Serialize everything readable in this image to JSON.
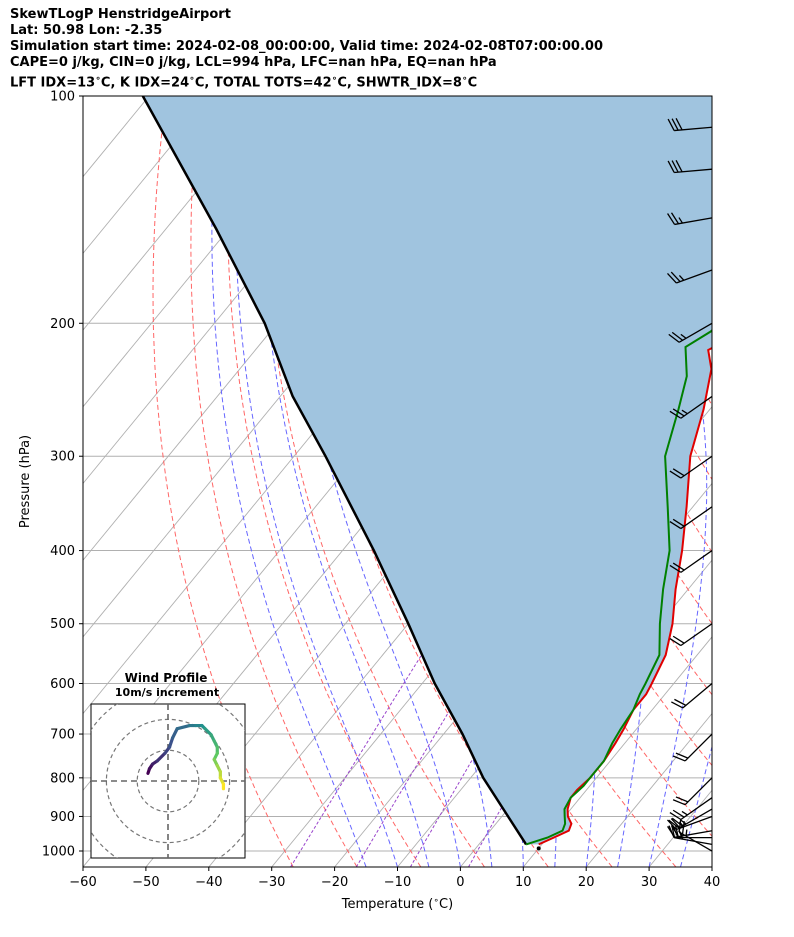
{
  "header": {
    "lines": [
      "SkewTLogP HenstridgeAirport",
      "Lat: 50.98   Lon: -2.35",
      "Simulation start time: 2024-02-08_00:00:00, Valid time: 2024-02-08T07:00:00.00",
      "CAPE=0 j/kg, CIN=0 j/kg, LCL=994 hPa, LFC=nan hPa, EQ=nan hPa",
      "LFT IDX=13$^\\circ$C, K IDX=24$^\\circ$C, TOTAL TOTS=42$^\\circ$C, SHWTR_IDX=8$^\\circ$C"
    ]
  },
  "chart_data": {
    "type": "line",
    "subtype": "skew-t log-p",
    "xlabel": "Temperature ($^\\circ$C)",
    "ylabel": "Pressure (hPa)",
    "xlim": [
      -60,
      40
    ],
    "ylim": [
      1050,
      100
    ],
    "yscale": "log",
    "xticks": [
      -60,
      -50,
      -40,
      -30,
      -20,
      -10,
      0,
      10,
      20,
      30,
      40
    ],
    "xtick_labels": [
      "−60",
      "−50",
      "−40",
      "−30",
      "−20",
      "−10",
      "0",
      "10",
      "20",
      "30",
      "40"
    ],
    "yticks": [
      1000,
      900,
      800,
      700,
      600,
      500,
      400,
      300,
      200,
      100
    ],
    "grid": true,
    "colors": {
      "temperature": "#e00000",
      "dewpoint": "#008000",
      "parcel": "#000000",
      "cape_fill": "#a0c4df",
      "dry_adiabat": "#ff6666",
      "moist_adiabat": "#6666ff",
      "mixing_ratio": "#9944cc",
      "isotherm": "#b0b0b0"
    },
    "series": [
      {
        "key": "temperature",
        "points": [
          [
            980,
            9.5
          ],
          [
            960,
            11
          ],
          [
            940,
            12.5
          ],
          [
            920,
            12
          ],
          [
            900,
            10.5
          ],
          [
            880,
            9.5
          ],
          [
            850,
            8.5
          ],
          [
            830,
            8.5
          ],
          [
            800,
            9
          ],
          [
            760,
            9
          ],
          [
            720,
            8.5
          ],
          [
            690,
            8
          ],
          [
            650,
            7
          ],
          [
            620,
            7
          ],
          [
            600,
            6.5
          ],
          [
            550,
            5
          ],
          [
            500,
            2
          ],
          [
            450,
            -2
          ],
          [
            400,
            -6
          ],
          [
            350,
            -11
          ],
          [
            300,
            -17
          ],
          [
            260,
            -21
          ],
          [
            230,
            -25
          ],
          [
            217,
            -28
          ],
          [
            202,
            -24
          ],
          [
            190,
            -23
          ],
          [
            180,
            -20
          ],
          [
            165,
            -15
          ],
          [
            150,
            -14
          ],
          [
            135,
            -17
          ],
          [
            120,
            -20
          ],
          [
            110,
            -22
          ],
          [
            100,
            -24
          ]
        ]
      },
      {
        "key": "dewpoint",
        "points": [
          [
            980,
            7.5
          ],
          [
            960,
            10
          ],
          [
            940,
            11.5
          ],
          [
            920,
            11
          ],
          [
            900,
            10
          ],
          [
            880,
            9
          ],
          [
            850,
            8.5
          ],
          [
            820,
            9
          ],
          [
            800,
            9
          ],
          [
            760,
            9
          ],
          [
            720,
            8
          ],
          [
            690,
            7.5
          ],
          [
            650,
            7
          ],
          [
            620,
            6
          ],
          [
            600,
            5.5
          ],
          [
            550,
            4
          ],
          [
            500,
            0
          ],
          [
            450,
            -4
          ],
          [
            400,
            -8
          ],
          [
            350,
            -14
          ],
          [
            300,
            -21
          ],
          [
            260,
            -25
          ],
          [
            235,
            -28
          ],
          [
            215,
            -32
          ],
          [
            205,
            -30
          ],
          [
            190,
            -29
          ],
          [
            180,
            -27
          ],
          [
            165,
            -21
          ],
          [
            152,
            -17
          ],
          [
            140,
            -15
          ],
          [
            135,
            -18
          ],
          [
            125,
            -19
          ],
          [
            115,
            -22
          ],
          [
            100,
            -30
          ]
        ]
      },
      {
        "key": "parcel",
        "points": [
          [
            980,
            7.5
          ],
          [
            900,
            1
          ],
          [
            800,
            -8
          ],
          [
            700,
            -17
          ],
          [
            600,
            -28
          ],
          [
            500,
            -40
          ],
          [
            400,
            -55
          ],
          [
            300,
            -75
          ],
          [
            250,
            -88
          ],
          [
            200,
            -102
          ],
          [
            150,
            -122
          ],
          [
            100,
            -151
          ]
        ]
      }
    ],
    "isobar_lines": [
      1000,
      900,
      800,
      700,
      600,
      500,
      400,
      300,
      200,
      100
    ],
    "isotherms_c": [
      -150,
      -140,
      -130,
      -120,
      -110,
      -100,
      -90,
      -80,
      -70,
      -60,
      -50,
      -40,
      -30,
      -20,
      -10,
      0,
      10,
      20,
      30,
      40
    ],
    "dry_adiabats_theta_c": [
      -30,
      -20,
      -10,
      0,
      10,
      20,
      30,
      40,
      50,
      60,
      70,
      80,
      90,
      100
    ],
    "moist_adiabats_start_t_c": [
      -15,
      -10,
      -5,
      0,
      5,
      10,
      15,
      20,
      25,
      30,
      35,
      40
    ],
    "mixing_ratio_g_kg": [
      0.4,
      1,
      2,
      4
    ],
    "wind_barbs": [
      {
        "p": 1000,
        "speed_kt": 25,
        "dir_deg": 300
      },
      {
        "p": 980,
        "speed_kt": 25,
        "dir_deg": 280
      },
      {
        "p": 960,
        "speed_kt": 25,
        "dir_deg": 270
      },
      {
        "p": 940,
        "speed_kt": 25,
        "dir_deg": 260
      },
      {
        "p": 900,
        "speed_kt": 25,
        "dir_deg": 250
      },
      {
        "p": 880,
        "speed_kt": 25,
        "dir_deg": 240
      },
      {
        "p": 850,
        "speed_kt": 25,
        "dir_deg": 235
      },
      {
        "p": 800,
        "speed_kt": 20,
        "dir_deg": 225
      },
      {
        "p": 700,
        "speed_kt": 20,
        "dir_deg": 225
      },
      {
        "p": 600,
        "speed_kt": 20,
        "dir_deg": 230
      },
      {
        "p": 500,
        "speed_kt": 20,
        "dir_deg": 235
      },
      {
        "p": 400,
        "speed_kt": 20,
        "dir_deg": 235
      },
      {
        "p": 350,
        "speed_kt": 20,
        "dir_deg": 235
      },
      {
        "p": 300,
        "speed_kt": 20,
        "dir_deg": 235
      },
      {
        "p": 250,
        "speed_kt": 25,
        "dir_deg": 235
      },
      {
        "p": 200,
        "speed_kt": 25,
        "dir_deg": 240
      },
      {
        "p": 170,
        "speed_kt": 25,
        "dir_deg": 250
      },
      {
        "p": 145,
        "speed_kt": 25,
        "dir_deg": 260
      },
      {
        "p": 125,
        "speed_kt": 30,
        "dir_deg": 265
      },
      {
        "p": 110,
        "speed_kt": 30,
        "dir_deg": 265
      }
    ],
    "hodograph": {
      "title": "Wind Profile",
      "subtitle": "10m/s increment",
      "rings_m_s": [
        10,
        20,
        30,
        40
      ],
      "range_m_s": [
        -25,
        25
      ],
      "colormap": [
        "#440154",
        "#3b528b",
        "#21918c",
        "#5ec962",
        "#fde725"
      ],
      "points": [
        [
          -6.5,
          2.5
        ],
        [
          -6,
          4
        ],
        [
          -5,
          5.5
        ],
        [
          -3.5,
          6.5
        ],
        [
          -1,
          9
        ],
        [
          0.5,
          11
        ],
        [
          1.5,
          14
        ],
        [
          3,
          17
        ],
        [
          7,
          18
        ],
        [
          9,
          18
        ],
        [
          11,
          18
        ],
        [
          12,
          17
        ],
        [
          14,
          15
        ],
        [
          15,
          13
        ],
        [
          16,
          11
        ],
        [
          16,
          9
        ],
        [
          15,
          7
        ],
        [
          16,
          5
        ],
        [
          17,
          3
        ],
        [
          17,
          1
        ],
        [
          18,
          -1
        ],
        [
          18,
          -2.5
        ]
      ]
    }
  }
}
